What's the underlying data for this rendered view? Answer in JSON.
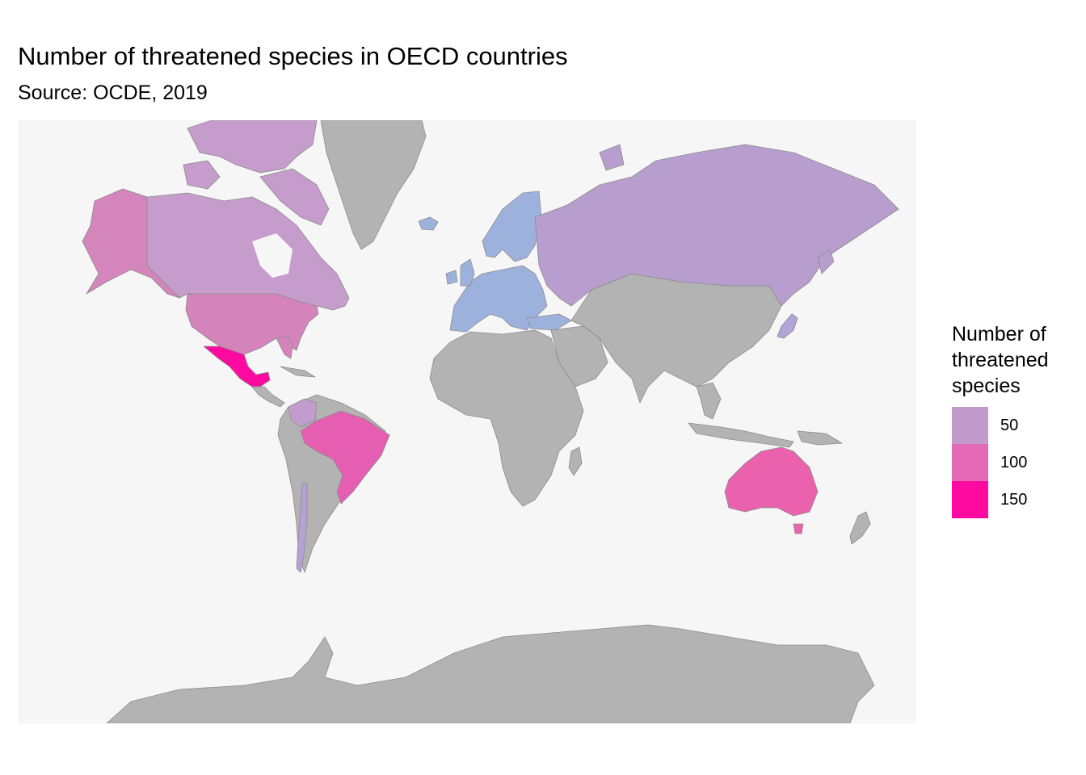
{
  "title": "Number of threatened species in OECD countries",
  "subtitle": "Source: OCDE, 2019",
  "map": {
    "background": "#f6f6f6",
    "land_color": "#b3b3b3",
    "border_color": "#8c8c8c",
    "regions": [
      {
        "name": "Canada",
        "value": 55,
        "color": "#c59ccb"
      },
      {
        "name": "Alaska",
        "value": 90,
        "color": "#d485bb"
      },
      {
        "name": "United States",
        "value": 90,
        "color": "#d483bb"
      },
      {
        "name": "Mexico",
        "value": 150,
        "color": "#ff0aa0"
      },
      {
        "name": "Colombia",
        "value": 50,
        "color": "#c19ccd"
      },
      {
        "name": "Brazil",
        "value": 110,
        "color": "#e65eb2"
      },
      {
        "name": "Chile",
        "value": 40,
        "color": "#b5a2d4"
      },
      {
        "name": "Greenland",
        "value": null,
        "color": "#b3b3b3"
      },
      {
        "name": "Europe",
        "value": 25,
        "color": "#9cb2dd"
      },
      {
        "name": "Russia",
        "value": 45,
        "color": "#b79ecf"
      },
      {
        "name": "Japan",
        "value": 40,
        "color": "#afa5d6"
      },
      {
        "name": "Australia",
        "value": 115,
        "color": "#ea62ae"
      }
    ]
  },
  "legend": {
    "title_lines": [
      "Number of",
      "threatened",
      "species"
    ],
    "items": [
      {
        "label": "50",
        "color": "#c29acc"
      },
      {
        "label": "100",
        "color": "#e46ab5"
      },
      {
        "label": "150",
        "color": "#ff0aa0"
      }
    ]
  }
}
